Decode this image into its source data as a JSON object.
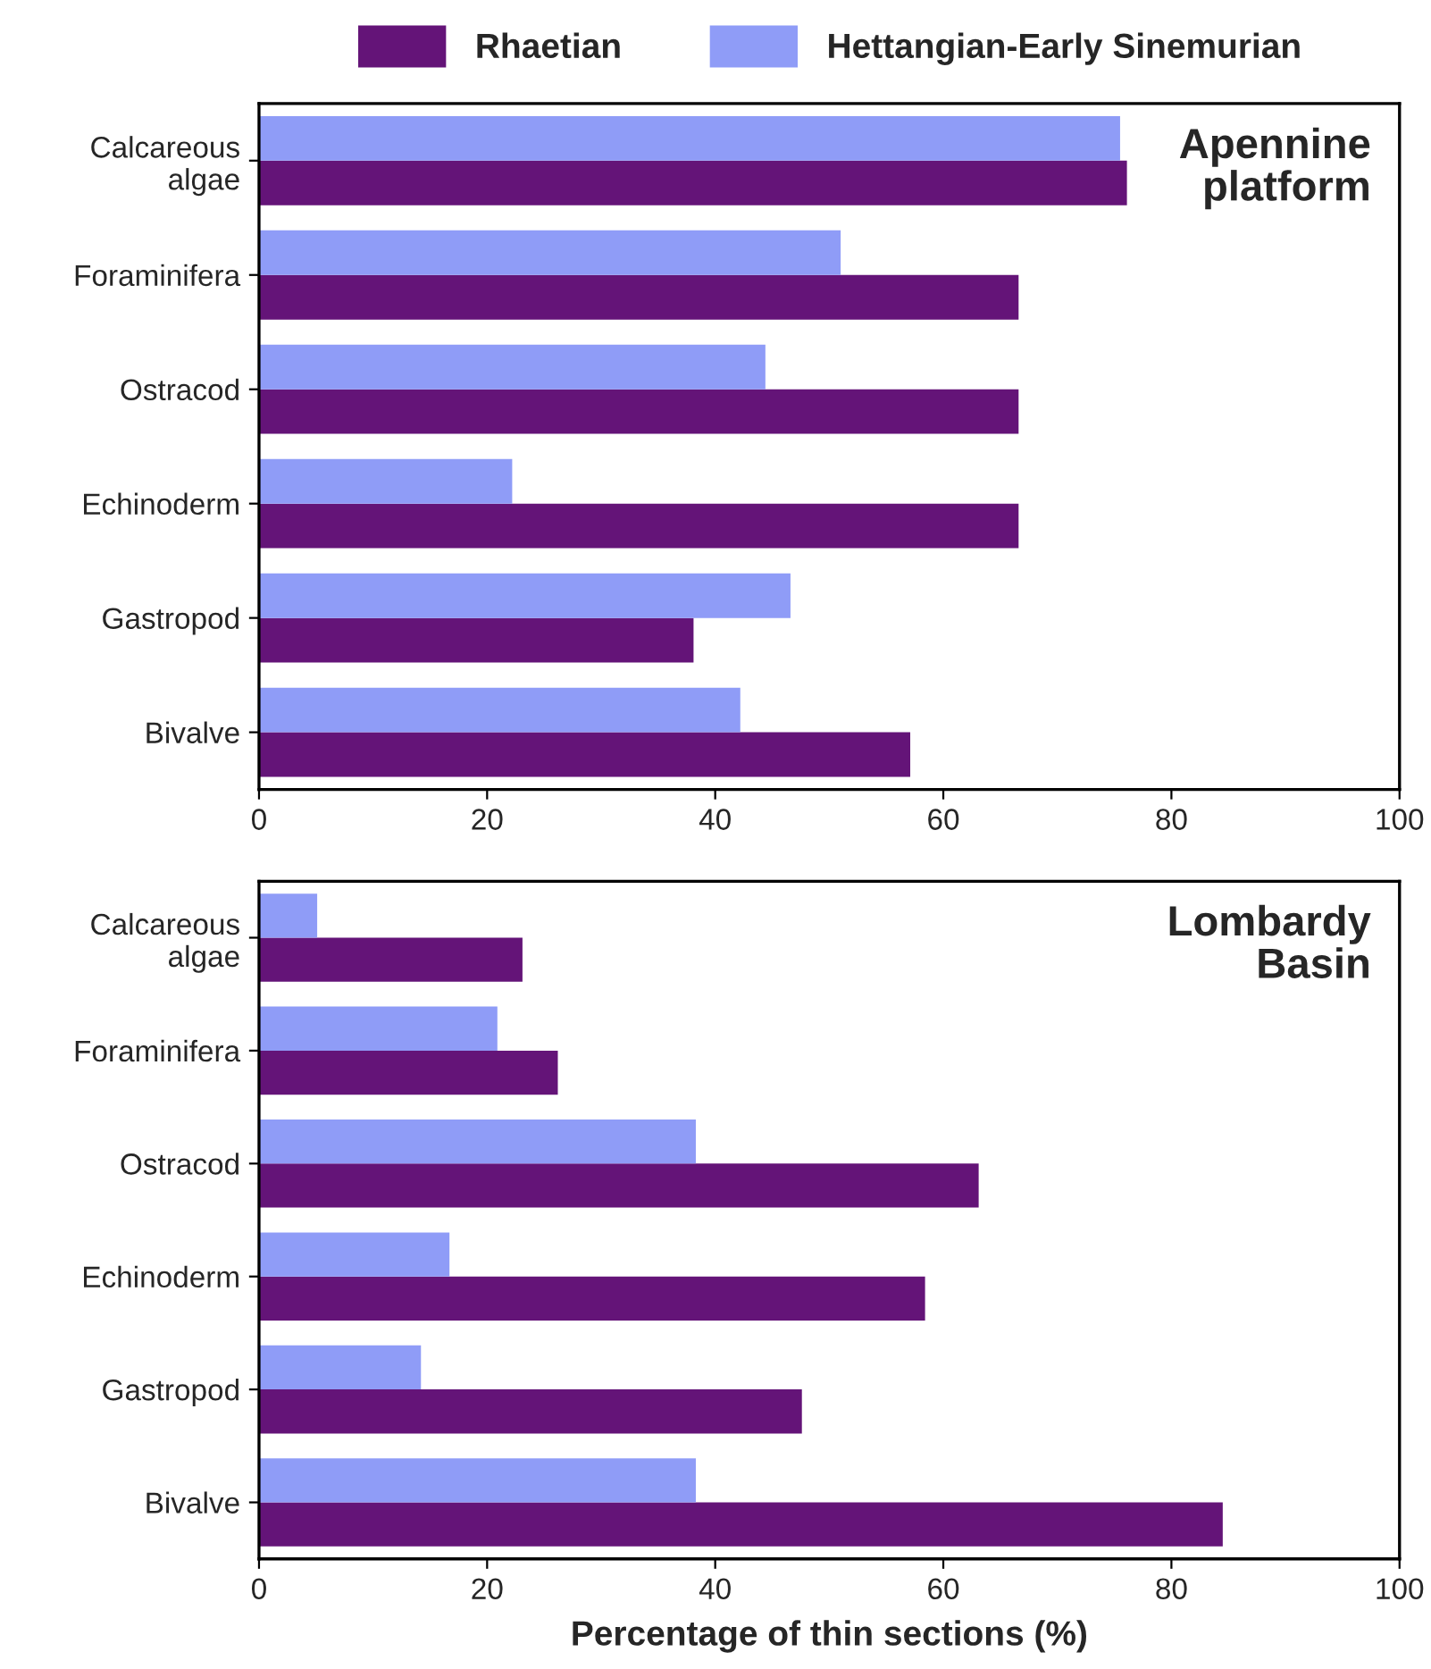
{
  "chart_data": [
    {
      "type": "bar",
      "orientation": "horizontal",
      "title": "Apennine\nplatform",
      "categories": [
        "Calcareous\nalgae",
        "Foraminifera",
        "Ostracod",
        "Echinoderm",
        "Gastropod",
        "Bivalve"
      ],
      "series": [
        {
          "name": "Rhaetian",
          "color": "#641478",
          "values": [
            76.1,
            66.6,
            66.6,
            66.6,
            38.1,
            57.1
          ]
        },
        {
          "name": "Hettangian-Early Sinemurian",
          "color": "#8f9cf7",
          "values": [
            75.5,
            51.0,
            44.4,
            22.2,
            46.6,
            42.2
          ]
        }
      ],
      "xlim": [
        0,
        100
      ],
      "xticks": [
        0,
        20,
        40,
        60,
        80,
        100
      ],
      "grid": false,
      "legend": "top"
    },
    {
      "type": "bar",
      "orientation": "horizontal",
      "title": "Lombardy\nBasin",
      "xlabel": "Percentage of thin sections (%)",
      "categories": [
        "Calcareous\nalgae",
        "Foraminifera",
        "Ostracod",
        "Echinoderm",
        "Gastropod",
        "Bivalve"
      ],
      "series": [
        {
          "name": "Rhaetian",
          "color": "#641478",
          "values": [
            23.1,
            26.2,
            63.1,
            58.4,
            47.6,
            84.5
          ]
        },
        {
          "name": "Hettangian-Early Sinemurian",
          "color": "#8f9cf7",
          "values": [
            5.1,
            20.9,
            38.3,
            16.7,
            14.2,
            38.3
          ]
        }
      ],
      "xlim": [
        0,
        100
      ],
      "xticks": [
        0,
        20,
        40,
        60,
        80,
        100
      ],
      "grid": false
    }
  ]
}
